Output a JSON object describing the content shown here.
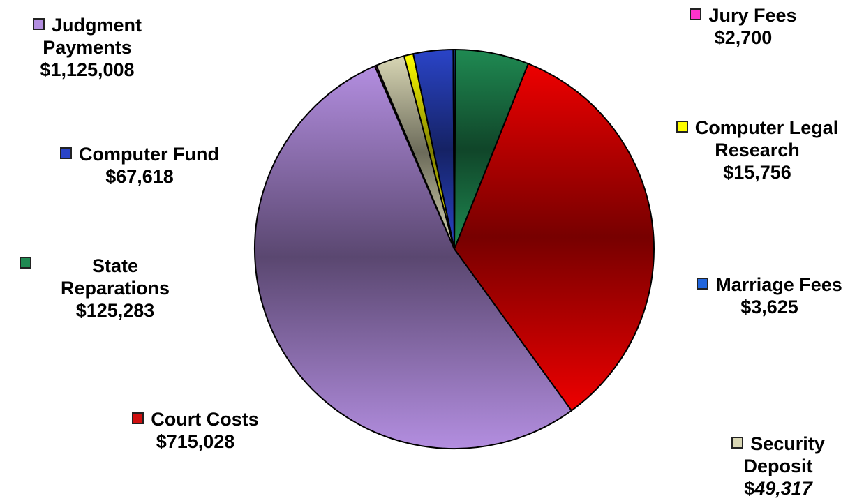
{
  "chart_data": {
    "type": "pie",
    "slices": [
      {
        "name": "Court Costs",
        "value": 715028,
        "display": "$715,028",
        "color": "#ee0000"
      },
      {
        "name": "Judgment Payments",
        "value": 1125008,
        "display": "$1,125,008",
        "color": "#b38ee0"
      },
      {
        "name": "Jury Fees",
        "value": 2700,
        "display": "$2,700",
        "color": "#ff33cc"
      },
      {
        "name": "Security Deposit",
        "value": 49317,
        "display": "$49,317",
        "color": "#d8d6b4"
      },
      {
        "name": "Computer Legal Research",
        "value": 15756,
        "display": "$15,756",
        "color": "#ffff00"
      },
      {
        "name": "Computer Fund",
        "value": 67618,
        "display": "$67,618",
        "color": "#2a44c8"
      },
      {
        "name": "Marriage Fees",
        "value": 3625,
        "display": "$3,625",
        "color": "#2266dd"
      },
      {
        "name": "State Reparations",
        "value": 125283,
        "display": "$125,283",
        "color": "#1f8a52"
      }
    ],
    "pie_order": [
      "State Reparations",
      "Court Costs",
      "Judgment Payments",
      "Jury Fees",
      "Security Deposit",
      "Computer Legal Research",
      "Computer Fund",
      "Marriage Fees"
    ],
    "legend": "labels placed around the pie with color swatches",
    "labels": {
      "judgment": {
        "l1": "Judgment",
        "l2": "Payments",
        "l3": "$1,125,008"
      },
      "computer_fund": {
        "l1": "Computer Fund",
        "l2": "$67,618"
      },
      "state": {
        "l1": "State",
        "l2": "Reparations",
        "l3": "$125,283"
      },
      "court": {
        "l1": "Court Costs",
        "l2": "$715,028"
      },
      "jury": {
        "l1": "Jury Fees",
        "l2": "$2,700"
      },
      "research": {
        "l1": "Computer Legal",
        "l2": "Research",
        "l3": "$15,756"
      },
      "marriage": {
        "l1": "Marriage Fees",
        "l2": "$3,625"
      },
      "security": {
        "l1": "Security",
        "l2": "Deposit",
        "l3_prefix": "$",
        "l3_value": "49,317"
      }
    }
  }
}
